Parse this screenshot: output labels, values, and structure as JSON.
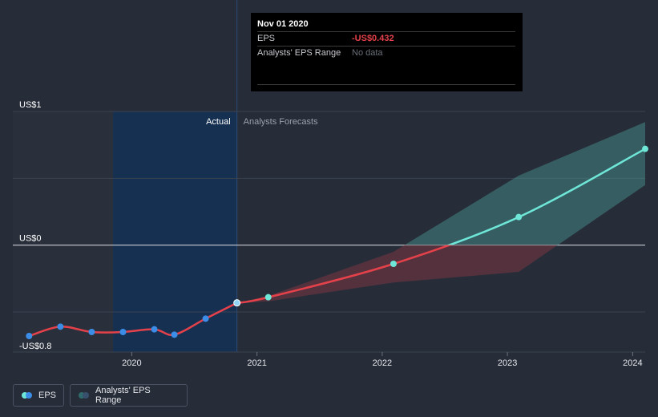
{
  "chart_data": {
    "type": "line",
    "y_axis": {
      "top_label": "US$1",
      "zero_label": "US$0",
      "bottom_label": "-US$0.8",
      "ylim": [
        -0.8,
        1.0
      ]
    },
    "x_axis": {
      "ticks": [
        "2020",
        "2021",
        "2022",
        "2023",
        "2024"
      ],
      "xlim": [
        2019.05,
        2024.1
      ]
    },
    "regions": {
      "actual_label": "Actual",
      "forecast_label": "Analysts Forecasts",
      "divider_x": 2020.84
    },
    "series": [
      {
        "name": "EPS",
        "role": "actual",
        "color": "#e5414a",
        "x": [
          2019.18,
          2019.43,
          2019.68,
          2019.93,
          2020.18,
          2020.34,
          2020.59,
          2020.84
        ],
        "y": [
          -0.68,
          -0.61,
          -0.65,
          -0.65,
          -0.63,
          -0.67,
          -0.55,
          -0.432
        ]
      },
      {
        "name": "EPS",
        "role": "forecast",
        "color_negative": "#e5414a",
        "color_positive": "#6ee7d8",
        "x": [
          2020.84,
          2021.09,
          2022.09,
          2023.09,
          2024.1
        ],
        "y": [
          -0.432,
          -0.39,
          -0.14,
          0.21,
          0.72
        ]
      }
    ],
    "range_band": {
      "name": "Analysts' EPS Range",
      "x": [
        2020.84,
        2021.09,
        2022.09,
        2023.09,
        2024.1
      ],
      "high": [
        -0.432,
        -0.38,
        -0.05,
        0.52,
        0.92
      ],
      "low": [
        -0.432,
        -0.42,
        -0.28,
        -0.2,
        0.45
      ]
    }
  },
  "tooltip": {
    "date": "Nov 01 2020",
    "rows": [
      {
        "key": "EPS",
        "value": "-US$0.432"
      },
      {
        "key": "Analysts' EPS Range",
        "value": "No data"
      }
    ]
  },
  "legend": {
    "eps_label": "EPS",
    "range_label": "Analysts' EPS Range"
  },
  "colors": {
    "background": "#262d39",
    "actual_region": "#163052",
    "grid": "#3a4250",
    "zero_line": "#c8ccd2",
    "positive": "#6ee7d8",
    "negative": "#e5414a",
    "marker_blue": "#3b8de8"
  }
}
